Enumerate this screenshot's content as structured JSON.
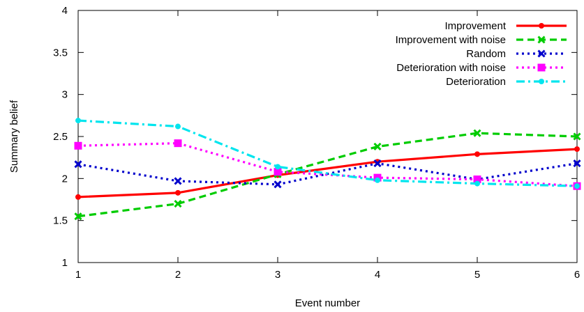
{
  "chart_data": {
    "type": "line",
    "title": "",
    "xlabel": "Event number",
    "ylabel": "Summary belief",
    "x": [
      1,
      2,
      3,
      4,
      5,
      6
    ],
    "xlim": [
      1,
      6
    ],
    "ylim": [
      1,
      4
    ],
    "xticks": [
      "1",
      "2",
      "3",
      "4",
      "5",
      "6"
    ],
    "yticks": [
      "1",
      "1.5",
      "2",
      "2.5",
      "3",
      "3.5",
      "4"
    ],
    "grid": false,
    "legend_position": "top-right",
    "series": [
      {
        "name": "Improvement",
        "values": [
          1.78,
          1.83,
          2.04,
          2.2,
          2.29,
          2.35
        ],
        "color": "#ff0000",
        "dash": "solid",
        "marker": "circle"
      },
      {
        "name": "Improvement with noise",
        "values": [
          1.55,
          1.7,
          2.05,
          2.38,
          2.54,
          2.5
        ],
        "color": "#00cc00",
        "dash": "dashed",
        "marker": "cross"
      },
      {
        "name": "Random",
        "values": [
          2.17,
          1.97,
          1.93,
          2.18,
          1.99,
          2.18
        ],
        "color": "#0000cc",
        "dash": "dotted",
        "marker": "cross"
      },
      {
        "name": "Deterioration with noise",
        "values": [
          2.39,
          2.42,
          2.08,
          2.01,
          1.99,
          1.91
        ],
        "color": "#ff00ff",
        "dash": "dotted",
        "marker": "square"
      },
      {
        "name": "Deterioration",
        "values": [
          2.69,
          2.62,
          2.14,
          1.98,
          1.94,
          1.91
        ],
        "color": "#00e5ee",
        "dash": "dashdot",
        "marker": "circle"
      }
    ]
  }
}
